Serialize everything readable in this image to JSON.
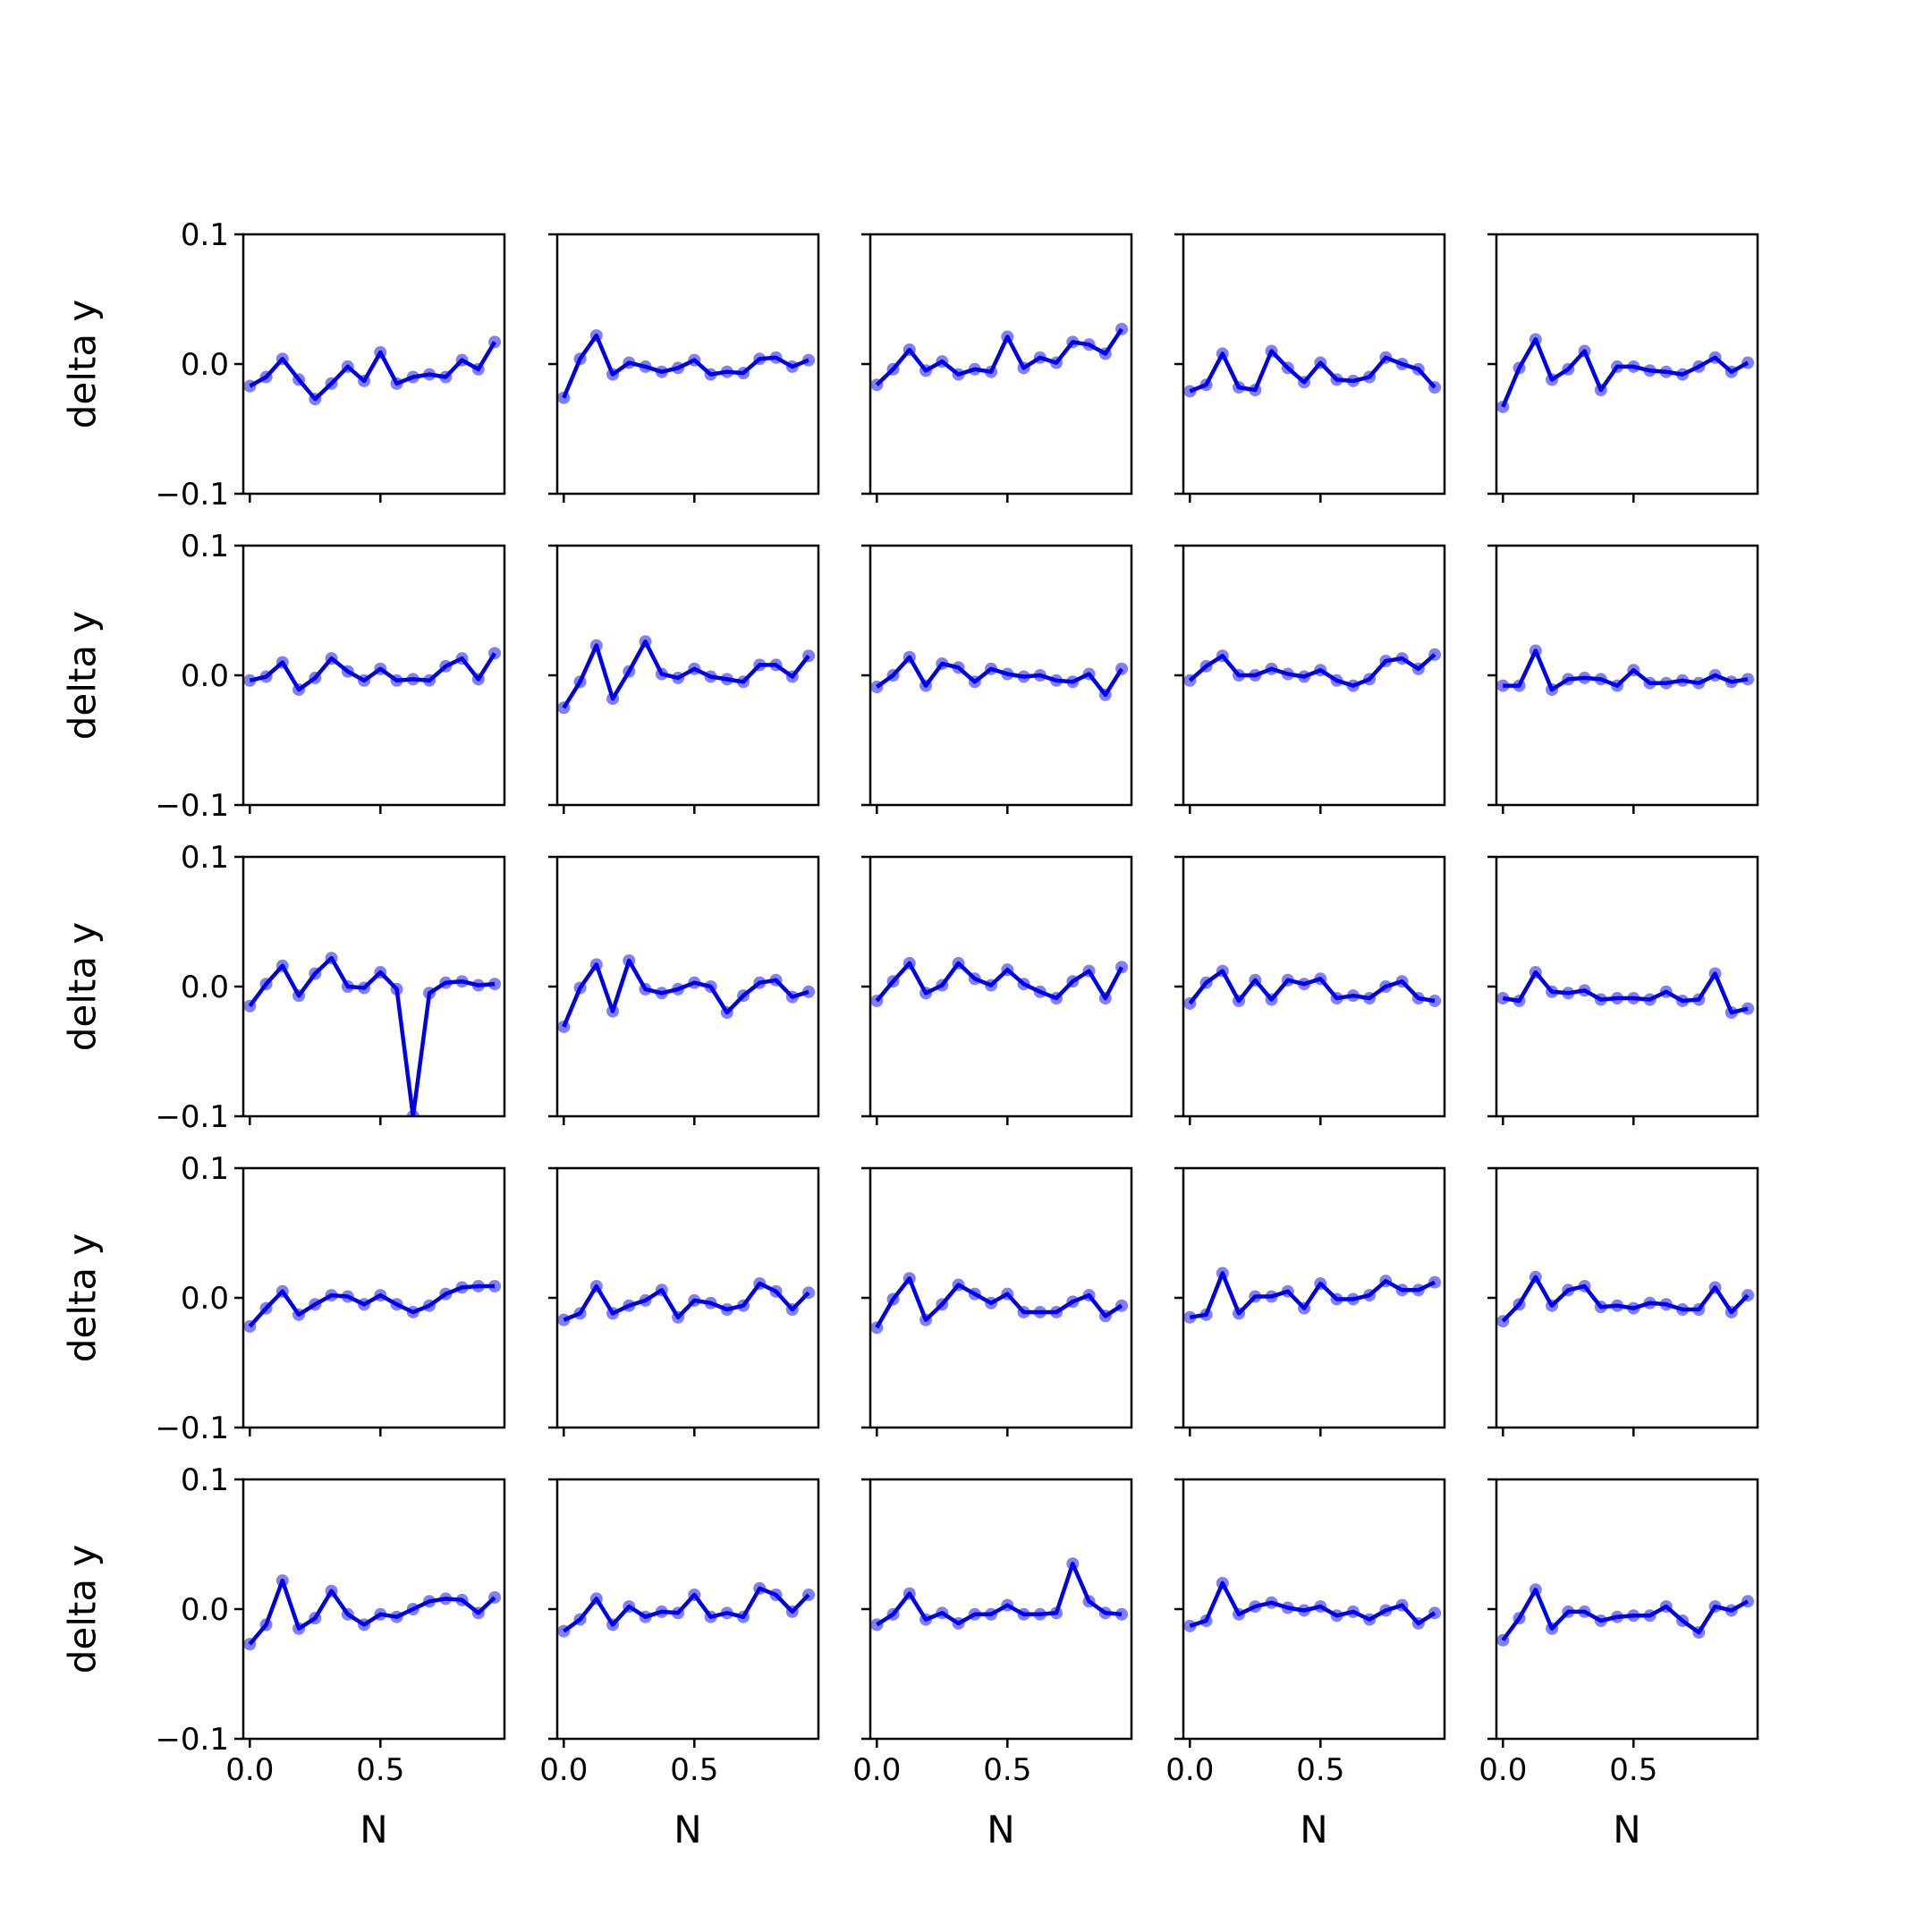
{
  "chart_data": {
    "type": "line",
    "layout": "5x5 small multiples",
    "xlabel": "N",
    "ylabel": "delta y",
    "ylim": [
      -0.1,
      0.1
    ],
    "xlim": [
      -0.025,
      0.975
    ],
    "yticks": [
      -0.1,
      0.0,
      0.1
    ],
    "ytick_labels": [
      "−0.1",
      "0.0",
      "0.1"
    ],
    "xticks": [
      0.0,
      0.5
    ],
    "xtick_labels": [
      "0.0",
      "0.5"
    ],
    "grid": false,
    "x": [
      0.0,
      0.0625,
      0.125,
      0.1875,
      0.25,
      0.3125,
      0.375,
      0.4375,
      0.5,
      0.5625,
      0.625,
      0.6875,
      0.75,
      0.8125,
      0.875,
      0.9375
    ],
    "colors": {
      "line": "#0000e6",
      "marker": "#0000ff"
    },
    "panels": [
      {
        "values": [
          -0.017,
          -0.01,
          0.004,
          -0.012,
          -0.027,
          -0.015,
          -0.002,
          -0.013,
          0.009,
          -0.015,
          -0.01,
          -0.008,
          -0.01,
          0.003,
          -0.004,
          0.017
        ]
      },
      {
        "values": [
          -0.026,
          0.004,
          0.022,
          -0.008,
          0.001,
          -0.002,
          -0.006,
          -0.003,
          0.003,
          -0.008,
          -0.006,
          -0.007,
          0.004,
          0.005,
          -0.002,
          0.003
        ]
      },
      {
        "values": [
          -0.016,
          -0.004,
          0.011,
          -0.005,
          0.002,
          -0.008,
          -0.004,
          -0.006,
          0.021,
          -0.003,
          0.005,
          0.001,
          0.017,
          0.015,
          0.008,
          0.027
        ]
      },
      {
        "values": [
          -0.021,
          -0.016,
          0.008,
          -0.018,
          -0.02,
          0.01,
          -0.003,
          -0.014,
          0.001,
          -0.012,
          -0.013,
          -0.01,
          0.005,
          0.0,
          -0.004,
          -0.018
        ]
      },
      {
        "values": [
          -0.033,
          -0.003,
          0.019,
          -0.012,
          -0.004,
          0.01,
          -0.02,
          -0.002,
          -0.002,
          -0.005,
          -0.006,
          -0.008,
          -0.002,
          0.005,
          -0.006,
          0.001
        ]
      },
      {
        "values": [
          -0.004,
          -0.001,
          0.01,
          -0.011,
          -0.002,
          0.013,
          0.003,
          -0.004,
          0.005,
          -0.004,
          -0.003,
          -0.004,
          0.007,
          0.013,
          -0.003,
          0.017
        ]
      },
      {
        "values": [
          -0.025,
          -0.005,
          0.023,
          -0.018,
          0.003,
          0.026,
          0.001,
          -0.002,
          0.005,
          -0.001,
          -0.003,
          -0.005,
          0.008,
          0.008,
          -0.001,
          0.015
        ]
      },
      {
        "values": [
          -0.009,
          0.0,
          0.014,
          -0.008,
          0.009,
          0.006,
          -0.005,
          0.005,
          0.001,
          -0.001,
          0.0,
          -0.004,
          -0.005,
          0.001,
          -0.015,
          0.005
        ]
      },
      {
        "values": [
          -0.004,
          0.007,
          0.015,
          0.0,
          0.0,
          0.005,
          0.001,
          -0.001,
          0.004,
          -0.004,
          -0.008,
          -0.003,
          0.011,
          0.013,
          0.005,
          0.016
        ]
      },
      {
        "values": [
          -0.008,
          -0.008,
          0.019,
          -0.011,
          -0.003,
          -0.002,
          -0.003,
          -0.008,
          0.004,
          -0.006,
          -0.006,
          -0.004,
          -0.006,
          0.0,
          -0.005,
          -0.003
        ]
      },
      {
        "values": [
          -0.015,
          0.002,
          0.016,
          -0.007,
          0.01,
          0.022,
          0.0,
          -0.001,
          0.011,
          -0.002,
          -0.1,
          -0.005,
          0.003,
          0.004,
          0.001,
          0.002
        ]
      },
      {
        "values": [
          -0.031,
          -0.001,
          0.017,
          -0.019,
          0.02,
          -0.002,
          -0.005,
          -0.002,
          0.003,
          0.0,
          -0.02,
          -0.007,
          0.003,
          0.005,
          -0.008,
          -0.004
        ]
      },
      {
        "values": [
          -0.011,
          0.004,
          0.018,
          -0.005,
          0.001,
          0.018,
          0.006,
          0.001,
          0.013,
          0.002,
          -0.004,
          -0.009,
          0.004,
          0.012,
          -0.009,
          0.015
        ]
      },
      {
        "values": [
          -0.013,
          0.003,
          0.012,
          -0.011,
          0.005,
          -0.01,
          0.005,
          0.002,
          0.006,
          -0.009,
          -0.007,
          -0.009,
          0.0,
          0.004,
          -0.009,
          -0.011
        ]
      },
      {
        "values": [
          -0.009,
          -0.011,
          0.011,
          -0.004,
          -0.005,
          -0.003,
          -0.01,
          -0.009,
          -0.009,
          -0.01,
          -0.004,
          -0.011,
          -0.01,
          0.01,
          -0.02,
          -0.017
        ]
      },
      {
        "values": [
          -0.022,
          -0.008,
          0.005,
          -0.013,
          -0.005,
          0.002,
          0.001,
          -0.005,
          0.002,
          -0.005,
          -0.011,
          -0.006,
          0.003,
          0.008,
          0.009,
          0.009
        ]
      },
      {
        "values": [
          -0.017,
          -0.012,
          0.009,
          -0.012,
          -0.006,
          -0.002,
          0.006,
          -0.015,
          -0.002,
          -0.004,
          -0.009,
          -0.006,
          0.011,
          0.005,
          -0.009,
          0.004
        ]
      },
      {
        "values": [
          -0.023,
          -0.001,
          0.015,
          -0.017,
          -0.005,
          0.01,
          0.003,
          -0.004,
          0.003,
          -0.011,
          -0.011,
          -0.011,
          -0.003,
          0.002,
          -0.014,
          -0.006
        ]
      },
      {
        "values": [
          -0.015,
          -0.013,
          0.019,
          -0.012,
          0.001,
          0.001,
          0.005,
          -0.008,
          0.011,
          -0.001,
          -0.001,
          0.002,
          0.013,
          0.006,
          0.006,
          0.012
        ]
      },
      {
        "values": [
          -0.018,
          -0.005,
          0.016,
          -0.006,
          0.006,
          0.009,
          -0.007,
          -0.006,
          -0.008,
          -0.004,
          -0.005,
          -0.009,
          -0.009,
          0.008,
          -0.011,
          0.002
        ]
      },
      {
        "values": [
          -0.027,
          -0.012,
          0.022,
          -0.015,
          -0.007,
          0.014,
          -0.004,
          -0.012,
          -0.004,
          -0.006,
          0.0,
          0.006,
          0.008,
          0.007,
          -0.003,
          0.009
        ]
      },
      {
        "values": [
          -0.017,
          -0.008,
          0.008,
          -0.012,
          0.002,
          -0.006,
          -0.002,
          -0.003,
          0.011,
          -0.006,
          -0.003,
          -0.006,
          0.016,
          0.011,
          -0.002,
          0.011
        ]
      },
      {
        "values": [
          -0.012,
          -0.004,
          0.012,
          -0.008,
          -0.003,
          -0.011,
          -0.004,
          -0.004,
          0.003,
          -0.004,
          -0.004,
          -0.003,
          0.035,
          0.006,
          -0.003,
          -0.004
        ]
      },
      {
        "values": [
          -0.013,
          -0.009,
          0.02,
          -0.004,
          0.002,
          0.005,
          0.001,
          -0.001,
          0.002,
          -0.005,
          -0.002,
          -0.008,
          -0.001,
          0.003,
          -0.011,
          -0.003
        ]
      },
      {
        "values": [
          -0.024,
          -0.007,
          0.015,
          -0.015,
          -0.002,
          -0.002,
          -0.009,
          -0.006,
          -0.005,
          -0.005,
          0.002,
          -0.009,
          -0.018,
          0.002,
          -0.001,
          0.006
        ]
      }
    ]
  }
}
